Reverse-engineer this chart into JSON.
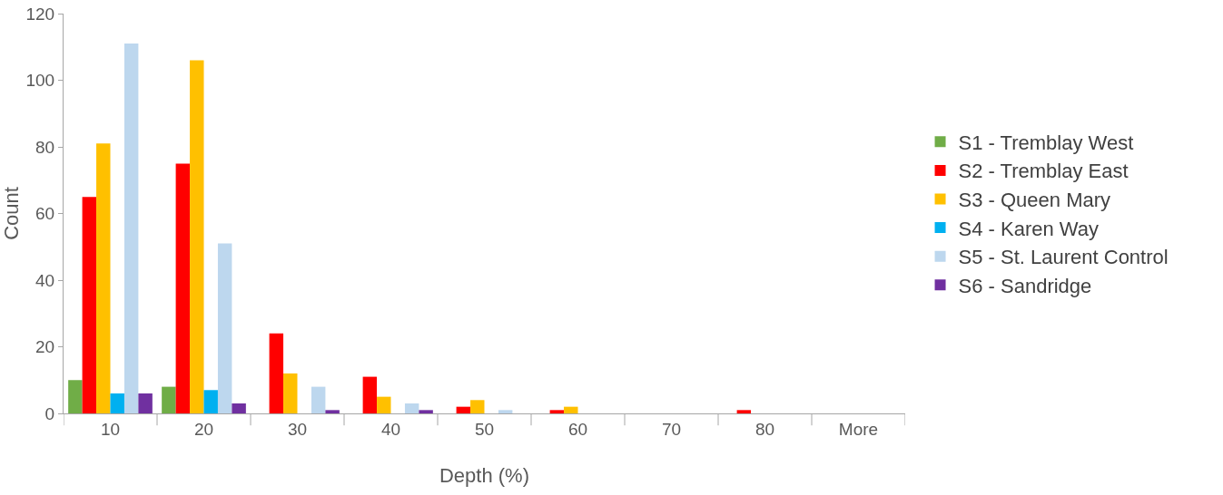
{
  "chart_data": {
    "type": "bar",
    "xlabel": "Depth (%)",
    "ylabel": "Count",
    "categories": [
      "10",
      "20",
      "30",
      "40",
      "50",
      "60",
      "70",
      "80",
      "More"
    ],
    "series": [
      {
        "name": "S1 - Tremblay West",
        "color": "#70ad47",
        "values": [
          10,
          8,
          0,
          0,
          0,
          0,
          0,
          0,
          0
        ]
      },
      {
        "name": "S2 - Tremblay East",
        "color": "#ff0000",
        "values": [
          65,
          75,
          24,
          11,
          2,
          1,
          0,
          1,
          0
        ]
      },
      {
        "name": "S3 - Queen Mary",
        "color": "#ffc000",
        "values": [
          81,
          106,
          12,
          5,
          4,
          2,
          0,
          0,
          0
        ]
      },
      {
        "name": "S4 - Karen Way",
        "color": "#00b0f0",
        "values": [
          6,
          7,
          0,
          0,
          0,
          0,
          0,
          0,
          0
        ]
      },
      {
        "name": "S5 - St. Laurent Control",
        "color": "#bdd7ee",
        "values": [
          111,
          51,
          8,
          3,
          1,
          0,
          0,
          0,
          0
        ]
      },
      {
        "name": "S6 - Sandridge",
        "color": "#7030a0",
        "values": [
          6,
          3,
          1,
          1,
          0,
          0,
          0,
          0,
          0
        ]
      }
    ],
    "ylim": [
      0,
      120
    ],
    "yticks": [
      0,
      20,
      40,
      60,
      80,
      100,
      120
    ],
    "grid": false,
    "legend": "right"
  }
}
